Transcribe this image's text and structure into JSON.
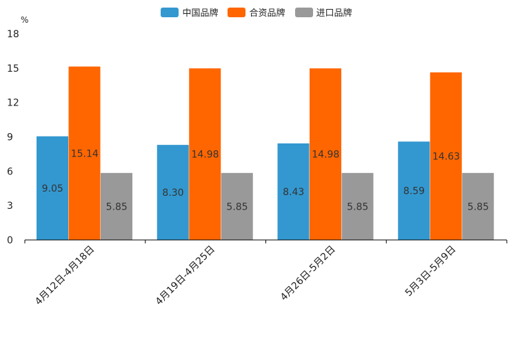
{
  "chart_data": {
    "type": "bar",
    "unit": "%",
    "categories": [
      "4月12日-4月18日",
      "4月19日-4月25日",
      "4月26日-5月2日",
      "5月3日-5月9日"
    ],
    "series": [
      {
        "name": "中国品牌",
        "color": "#3398D0",
        "values": [
          9.05,
          8.3,
          8.43,
          8.59
        ],
        "labels": [
          "9.05",
          "8.30",
          "8.43",
          "8.59"
        ]
      },
      {
        "name": "合资品牌",
        "color": "#FF6600",
        "values": [
          15.14,
          14.98,
          14.98,
          14.63
        ],
        "labels": [
          "15.14",
          "14.98",
          "14.98",
          "14.63"
        ]
      },
      {
        "name": "进口品牌",
        "color": "#999999",
        "values": [
          5.85,
          5.85,
          5.85,
          5.85
        ],
        "labels": [
          "5.85",
          "5.85",
          "5.85",
          "5.85"
        ]
      }
    ],
    "ylim": [
      0,
      18
    ],
    "yticks": [
      0,
      3,
      6,
      9,
      12,
      15,
      18
    ],
    "legend_position": "top-center"
  }
}
